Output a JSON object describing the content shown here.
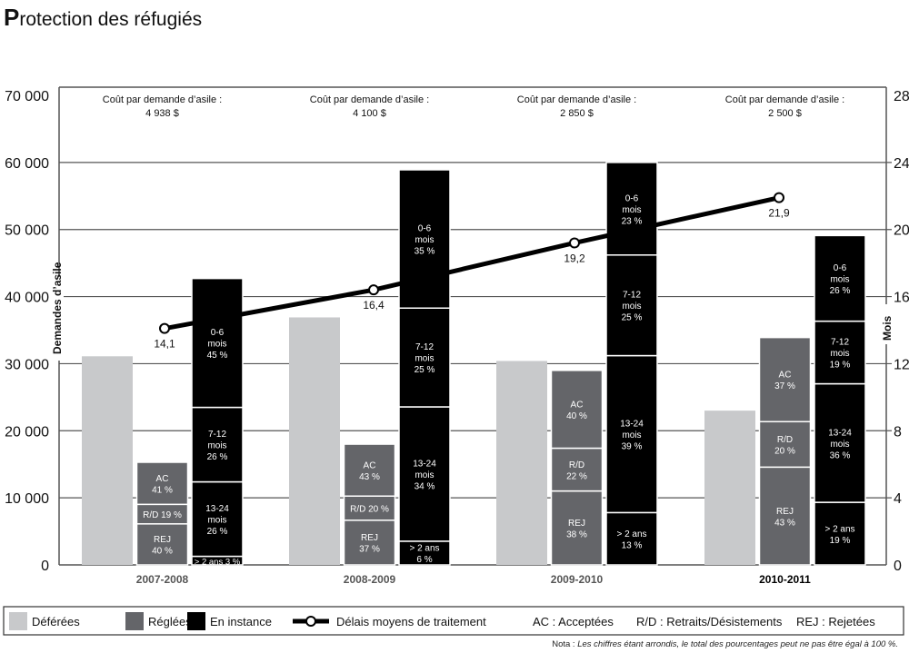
{
  "title": {
    "first_letter": "P",
    "rest": "rotection des réfugiés"
  },
  "chart_data": {
    "type": "bar",
    "title": "Protection des réfugiés",
    "ylabel": "Demandes d’asile",
    "y2label": "Mois",
    "ylim": [
      0,
      70000
    ],
    "y2lim": [
      0,
      28
    ],
    "yticks": [
      "0",
      "10 000",
      "20 000",
      "30 000",
      "40 000",
      "50 000",
      "60 000",
      "70 000"
    ],
    "y2ticks": [
      "0",
      "4",
      "8",
      "12",
      "16",
      "20",
      "24",
      "28"
    ],
    "grid": true,
    "categories": [
      "2007-2008",
      "2008-2009",
      "2009-2010",
      "2010-2011"
    ],
    "cost_label": "Coût par demande d’asile :",
    "costs": [
      "4 938 $",
      "4 100 $",
      "2 850 $",
      "2 500 $"
    ],
    "series": [
      {
        "name": "Déférées",
        "color": "#c8c9cb",
        "values": [
          31100,
          36900,
          30400,
          23000
        ]
      },
      {
        "name": "Réglées",
        "color": "#646569",
        "values": [
          15300,
          18000,
          29000,
          33900
        ],
        "segments": [
          [
            {
              "label": "REJ",
              "pct": "40 %",
              "v": 40
            },
            {
              "label": "R/D",
              "pct": "19 %",
              "v": 19
            },
            {
              "label": "AC",
              "pct": "41 %",
              "v": 41
            }
          ],
          [
            {
              "label": "REJ",
              "pct": "37 %",
              "v": 37
            },
            {
              "label": "R/D",
              "pct": "20 %",
              "v": 20
            },
            {
              "label": "AC",
              "pct": "43 %",
              "v": 43
            }
          ],
          [
            {
              "label": "REJ",
              "pct": "38 %",
              "v": 38
            },
            {
              "label": "R/D",
              "pct": "22 %",
              "v": 22
            },
            {
              "label": "AC",
              "pct": "40 %",
              "v": 40
            }
          ],
          [
            {
              "label": "REJ",
              "pct": "43 %",
              "v": 43
            },
            {
              "label": "R/D",
              "pct": "20 %",
              "v": 20
            },
            {
              "label": "AC",
              "pct": "37 %",
              "v": 37
            }
          ]
        ]
      },
      {
        "name": "En instance",
        "color": "#000000",
        "values": [
          42700,
          58900,
          60000,
          49100
        ],
        "segments": [
          [
            {
              "label": "> 2 ans",
              "pct": "3 %",
              "v": 3
            },
            {
              "label": "13-24 mois",
              "pct": "26 %",
              "v": 26
            },
            {
              "label": "7-12 mois",
              "pct": "26 %",
              "v": 26
            },
            {
              "label": "0-6 mois",
              "pct": "45 %",
              "v": 45
            }
          ],
          [
            {
              "label": "> 2 ans",
              "pct": "6 %",
              "v": 6
            },
            {
              "label": "13-24 mois",
              "pct": "34 %",
              "v": 34
            },
            {
              "label": "7-12 mois",
              "pct": "25 %",
              "v": 25
            },
            {
              "label": "0-6 mois",
              "pct": "35 %",
              "v": 35
            }
          ],
          [
            {
              "label": "> 2 ans",
              "pct": "13 %",
              "v": 13
            },
            {
              "label": "13-24 mois",
              "pct": "39 %",
              "v": 39
            },
            {
              "label": "7-12 mois",
              "pct": "25 %",
              "v": 25
            },
            {
              "label": "0-6 mois",
              "pct": "23 %",
              "v": 23
            }
          ],
          [
            {
              "label": "> 2 ans",
              "pct": "19 %",
              "v": 19
            },
            {
              "label": "13-24 mois",
              "pct": "36 %",
              "v": 36
            },
            {
              "label": "7-12 mois",
              "pct": "19 %",
              "v": 19
            },
            {
              "label": "0-6 mois",
              "pct": "26 %",
              "v": 26
            }
          ]
        ]
      },
      {
        "name": "Délais moyens de traitement",
        "type": "line",
        "axis": "right",
        "values": [
          14.1,
          16.4,
          19.2,
          21.9
        ],
        "labels": [
          "14,1",
          "16,4",
          "19,2",
          "21,9"
        ]
      }
    ],
    "legend": {
      "placement": "bottom",
      "items": [
        "Déférées",
        "Réglées",
        "En instance",
        "Délais moyens de traitement"
      ],
      "abbreviations": [
        "AC : Acceptées",
        "R/D : Retraits/Désistements",
        "REJ : Rejetées"
      ]
    }
  },
  "note": {
    "prefix": "Nota : ",
    "text": "Les chiffres étant arrondis, le total des pourcentages peut ne pas être égal à 100 %."
  }
}
